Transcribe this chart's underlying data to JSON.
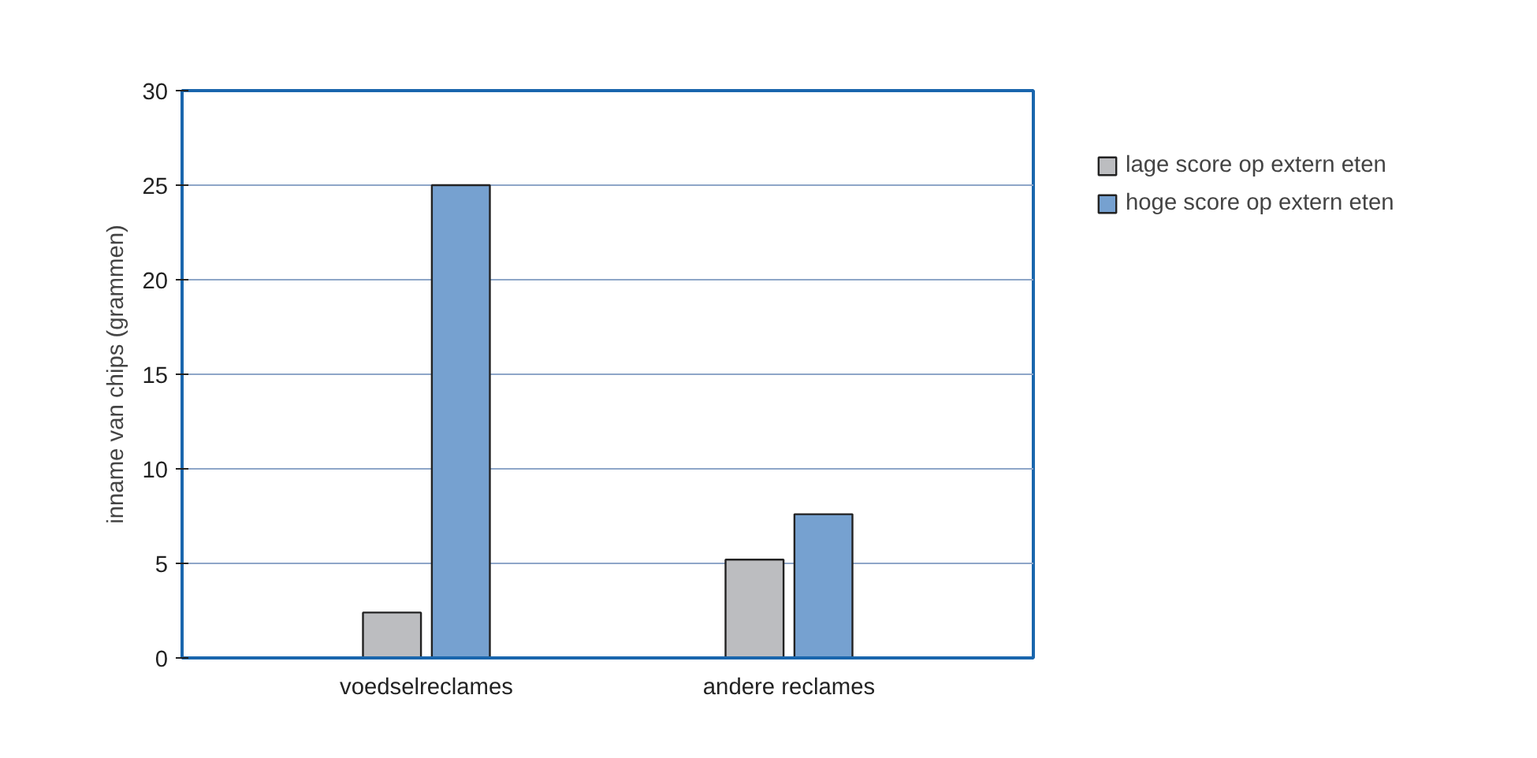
{
  "chart_data": {
    "type": "bar",
    "ylabel": "inname van chips (grammen)",
    "categories": [
      "voedselreclames",
      "andere reclames"
    ],
    "series": [
      {
        "name": "lage score op extern eten",
        "color": "#bcbdc0",
        "values": [
          2.4,
          5.2
        ]
      },
      {
        "name": "hoge score op extern eten",
        "color": "#76a1d0",
        "values": [
          25,
          7.6
        ]
      }
    ],
    "ylim": [
      0,
      30
    ],
    "yticks": [
      0,
      5,
      10,
      15,
      20,
      25,
      30
    ],
    "grid": "y",
    "legend": "right"
  }
}
